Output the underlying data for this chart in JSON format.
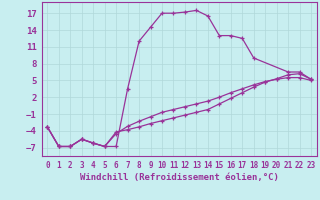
{
  "xlabel": "Windchill (Refroidissement éolien,°C)",
  "bg_color": "#c8eef0",
  "grid_color": "#b0d8da",
  "line_color": "#993399",
  "ylim": [
    -8.5,
    19
  ],
  "xlim": [
    -0.5,
    23.5
  ],
  "yticks": [
    -7,
    -4,
    -1,
    2,
    5,
    8,
    11,
    14,
    17
  ],
  "xticks": [
    0,
    1,
    2,
    3,
    4,
    5,
    6,
    7,
    8,
    9,
    10,
    11,
    12,
    13,
    14,
    15,
    16,
    17,
    18,
    19,
    20,
    21,
    22,
    23
  ],
  "line1_x": [
    0,
    1,
    2,
    3,
    4,
    5,
    6,
    7,
    8,
    9,
    10,
    11,
    12,
    13,
    14,
    15,
    16,
    17,
    18,
    21,
    22,
    23
  ],
  "line1_y": [
    -3.3,
    -6.8,
    -6.8,
    -5.5,
    -6.2,
    -6.8,
    -6.8,
    3.5,
    12.0,
    14.5,
    17.0,
    17.0,
    17.2,
    17.5,
    16.5,
    13.0,
    13.0,
    12.5,
    9.0,
    6.5,
    6.5,
    5.2
  ],
  "line2_x": [
    0,
    1,
    2,
    3,
    4,
    5,
    6,
    7,
    8,
    9,
    10,
    11,
    12,
    13,
    14,
    15,
    16,
    17,
    18,
    19,
    20,
    21,
    22,
    23
  ],
  "line2_y": [
    -3.3,
    -6.8,
    -6.8,
    -5.5,
    -6.2,
    -6.8,
    -4.2,
    -3.8,
    -3.3,
    -2.7,
    -2.2,
    -1.7,
    -1.2,
    -0.7,
    -0.2,
    0.8,
    1.8,
    2.8,
    3.8,
    4.7,
    5.3,
    6.0,
    6.2,
    5.2
  ],
  "line3_x": [
    0,
    1,
    2,
    3,
    4,
    5,
    6,
    7,
    8,
    9,
    10,
    11,
    12,
    13,
    14,
    15,
    16,
    17,
    18,
    19,
    20,
    21,
    22,
    23
  ],
  "line3_y": [
    -3.3,
    -6.8,
    -6.8,
    -5.5,
    -6.2,
    -6.8,
    -4.5,
    -3.2,
    -2.3,
    -1.5,
    -0.7,
    -0.2,
    0.3,
    0.8,
    1.3,
    2.0,
    2.8,
    3.5,
    4.2,
    4.8,
    5.2,
    5.5,
    5.5,
    5.0
  ],
  "xlabel_fontsize": 6.5,
  "tick_fontsize_x": 5.5,
  "tick_fontsize_y": 6.5
}
